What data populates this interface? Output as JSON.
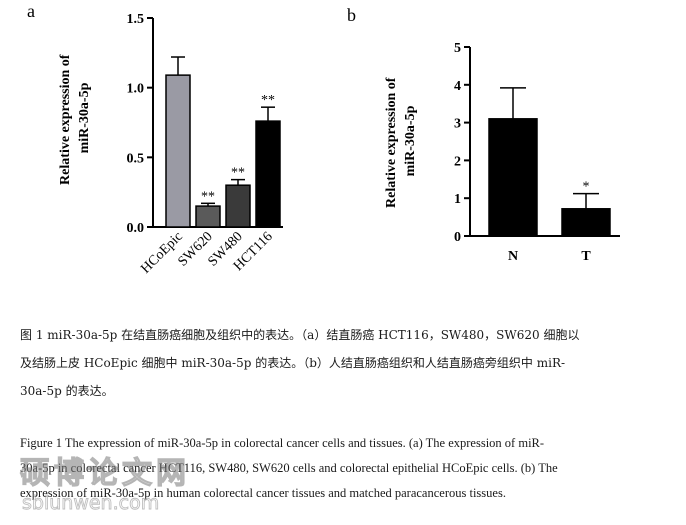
{
  "chart_data": [
    {
      "type": "bar",
      "panel": "a",
      "ylabel": "Relative expression of miR-30a-5p",
      "categories": [
        "HCoEpic",
        "SW620",
        "SW480",
        "HCT116"
      ],
      "values": [
        1.09,
        0.15,
        0.3,
        0.76
      ],
      "errors": [
        0.13,
        0.02,
        0.04,
        0.1
      ],
      "significance": [
        "",
        "**",
        "**",
        "**"
      ],
      "colors": [
        "#9a9aa4",
        "#5a5a5a",
        "#3a3a3a",
        "#000000"
      ],
      "ylim": [
        0,
        1.5
      ],
      "yticks": [
        "0.0",
        "0.5",
        "1.0",
        "1.5"
      ],
      "grid": false,
      "legend": "none"
    },
    {
      "type": "bar",
      "panel": "b",
      "ylabel": "Relative expression of miR-30a-5p",
      "categories": [
        "N",
        "T"
      ],
      "values": [
        3.1,
        0.72
      ],
      "errors": [
        0.82,
        0.4
      ],
      "significance": [
        "",
        "*"
      ],
      "colors": [
        "#000000",
        "#000000"
      ],
      "ylim": [
        0,
        5
      ],
      "yticks": [
        "0",
        "1",
        "2",
        "3",
        "4",
        "5"
      ],
      "grid": false,
      "legend": "none"
    }
  ],
  "caption": {
    "cn_line1": "图 1 miR-30a-5p 在结直肠癌细胞及组织中的表达。（a）结直肠癌 HCT116，SW480，SW620 细胞以",
    "cn_line2": "及结肠上皮 HCoEpic 细胞中 miR-30a-5p 的表达。（b）人结直肠癌组织和人结直肠癌旁组织中 miR-",
    "cn_line3": "30a-5p 的表达。",
    "en_line1": "Figure 1 The expression of miR-30a-5p in colorectal cancer cells and tissues. (a) The expression of miR-",
    "en_line2": "30a-5p in colorectal cancer HCT116, SW480, SW620 cells and colorectal epithelial HCoEpic cells. (b) The",
    "en_line3": "expression of miR-30a-5p in human colorectal cancer tissues and matched paracancerous tissues."
  },
  "watermark": {
    "cn": "硕博论文网",
    "url": "sblunwen.com"
  }
}
